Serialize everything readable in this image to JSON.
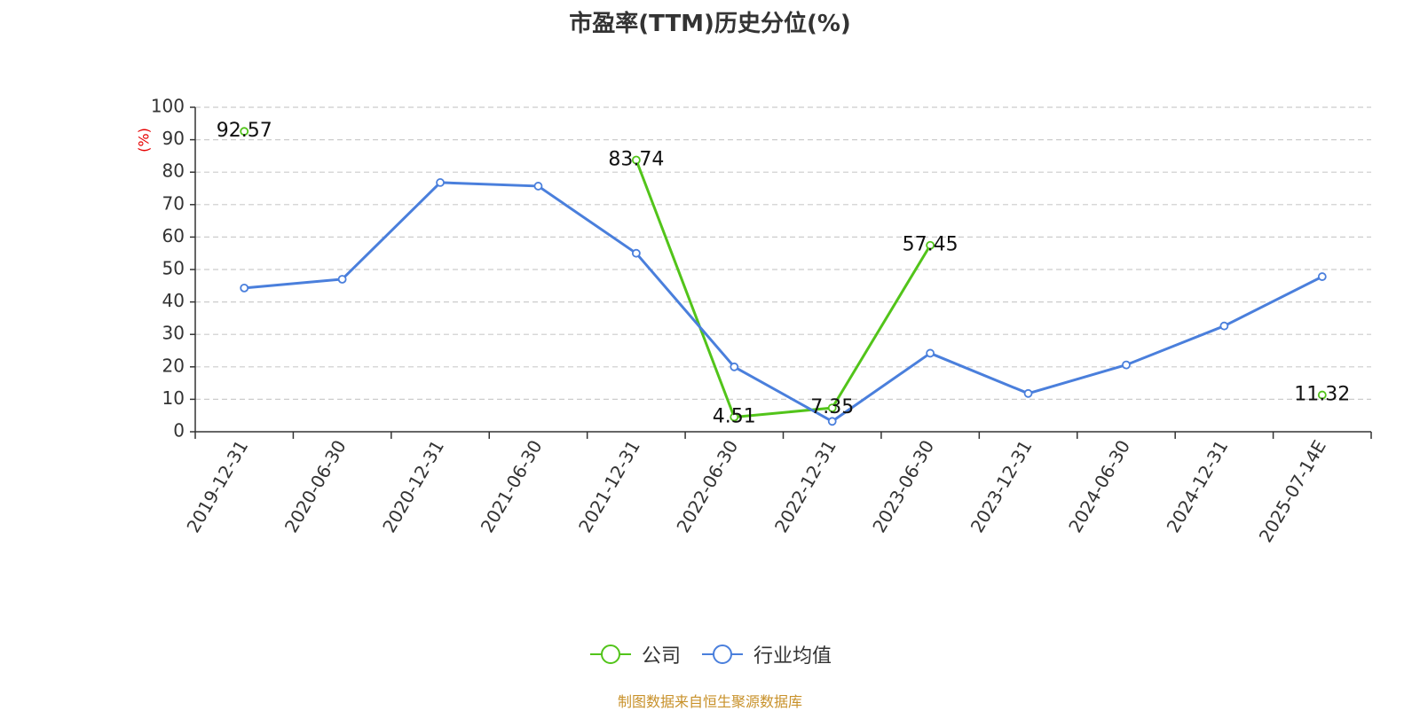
{
  "chart_data": {
    "type": "line",
    "title": "市盈率(TTM)历史分位(%)",
    "ylabel": "(%)",
    "ylim": [
      0,
      100
    ],
    "yticks": [
      0,
      10,
      20,
      30,
      40,
      50,
      60,
      70,
      80,
      90,
      100
    ],
    "grid": "horizontal-dashed",
    "legend_position": "bottom",
    "categories": [
      "2019-12-31",
      "2020-06-30",
      "2020-12-31",
      "2021-06-30",
      "2021-12-31",
      "2022-06-30",
      "2022-12-31",
      "2023-06-30",
      "2023-12-31",
      "2024-06-30",
      "2024-12-31",
      "2025-07-14E"
    ],
    "series": [
      {
        "name": "公司",
        "color": "#52c41a",
        "labeled": true,
        "values": [
          92.57,
          null,
          null,
          null,
          83.74,
          4.51,
          7.35,
          57.45,
          null,
          null,
          null,
          11.32
        ]
      },
      {
        "name": "行业均值",
        "color": "#4a7fdc",
        "labeled": false,
        "values": [
          44.3,
          47.0,
          76.8,
          75.7,
          55.0,
          20.0,
          3.2,
          24.2,
          11.8,
          20.6,
          32.6,
          47.8
        ]
      }
    ]
  },
  "source_note": "制图数据来自恒生聚源数据库",
  "colors": {
    "axis": "#333333",
    "grid": "#cccccc",
    "ylabel": "#e60000",
    "title": "#333333",
    "source": "#c8912a"
  }
}
